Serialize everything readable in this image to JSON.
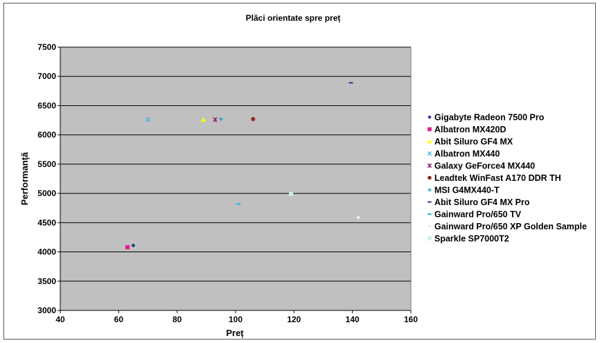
{
  "chart_data": {
    "type": "scatter",
    "title": "Plăci orientate spre preț",
    "xlabel": "Preț",
    "ylabel": "Performanță",
    "xlim": [
      40,
      160
    ],
    "ylim": [
      3000,
      7500
    ],
    "xticks": [
      40,
      60,
      80,
      100,
      120,
      140,
      160
    ],
    "yticks": [
      3000,
      3500,
      4000,
      4500,
      5000,
      5500,
      6000,
      6500,
      7000,
      7500
    ],
    "grid": "horizontal",
    "plot_background": "#c0c0c0",
    "legend_position": "right",
    "series": [
      {
        "name": "Gigabyte Radeon 7500 Pro",
        "marker": "diamond",
        "color": "#2e3192",
        "x": 65,
        "y": 4110
      },
      {
        "name": "Albatron MX420D",
        "marker": "square",
        "color": "#e6178c",
        "x": 63,
        "y": 4080
      },
      {
        "name": "Abit Siluro GF4 MX",
        "marker": "triangle",
        "color": "#ffff00",
        "x": 89,
        "y": 6260
      },
      {
        "name": "Albatron MX440",
        "marker": "x",
        "color": "#2fb5e6",
        "x": 70,
        "y": 6260
      },
      {
        "name": "Galaxy GeForce4 MX440",
        "marker": "star",
        "color": "#8a1f6e",
        "x": 93,
        "y": 6260
      },
      {
        "name": "Leadtek WinFast A170 DDR TH",
        "marker": "circle",
        "color": "#8b2a1a",
        "x": 106,
        "y": 6270
      },
      {
        "name": "MSI G4MX440-T",
        "marker": "plus",
        "color": "#1aa0c0",
        "x": 95,
        "y": 6270
      },
      {
        "name": "Abit Siluro GF4 MX Pro",
        "marker": "dash",
        "color": "#2e3192",
        "x": 139.5,
        "y": 6890
      },
      {
        "name": "Gainward Pro/650 TV",
        "marker": "dash",
        "color": "#22b8d8",
        "x": 101,
        "y": 4820
      },
      {
        "name": "Gainward Pro/650 XP Golden Sample",
        "marker": "diamond",
        "color": "#d9f2f8",
        "x": 142,
        "y": 4590
      },
      {
        "name": "Sparkle SP7000T2",
        "marker": "square",
        "color": "#ccf0e0",
        "x": 119,
        "y": 4990
      }
    ]
  }
}
